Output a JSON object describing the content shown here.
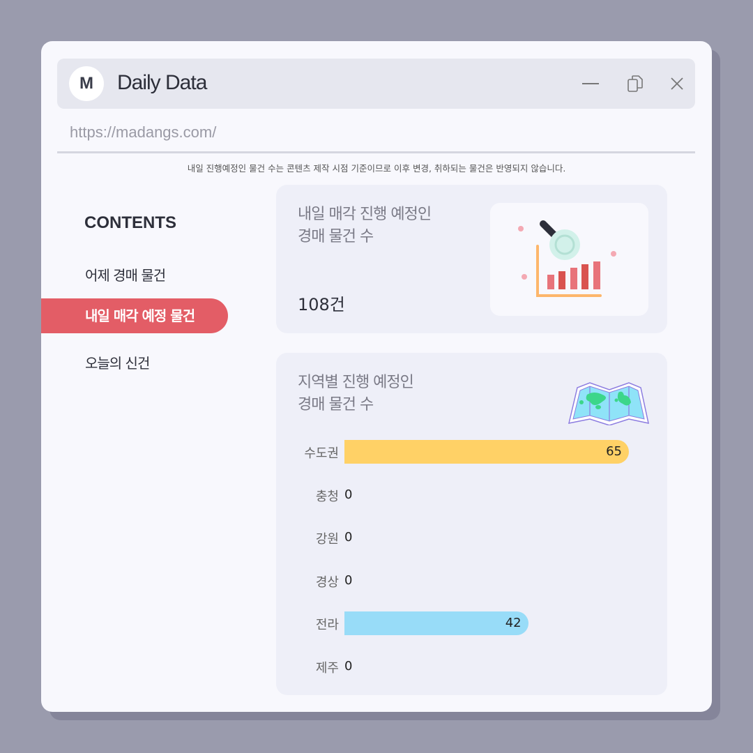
{
  "window": {
    "logo_letter": "M",
    "title": "Daily Data",
    "url": "https://madangs.com/"
  },
  "notice": "내일 진행예정인 물건 수는 콘텐츠 제작 시점 기준이므로 이후 변경, 취하되는 물건은 반영되지 않습니다.",
  "sidebar": {
    "heading": "CONTENTS",
    "items": [
      {
        "label": "어제 경매 물건",
        "active": false
      },
      {
        "label": "내일 매각 예정 물건",
        "active": true
      },
      {
        "label": "오늘의 신건",
        "active": false
      }
    ]
  },
  "card1": {
    "title_line1": "내일 매각 진행 예정인",
    "title_line2": "경매 물건 수",
    "count": "108건"
  },
  "card2": {
    "title_line1": "지역별 진행 예정인",
    "title_line2": "경매 물건 수"
  },
  "chart_data": {
    "type": "bar",
    "orientation": "horizontal",
    "categories": [
      "수도권",
      "충청",
      "강원",
      "경상",
      "전라",
      "제주"
    ],
    "values": [
      65,
      0,
      0,
      0,
      42,
      0
    ],
    "colors": [
      "#ffd166",
      "#ffd166",
      "#ffd166",
      "#ffd166",
      "#98dcf8",
      "#98dcf8"
    ]
  },
  "colors": {
    "accent": "#e35d66",
    "background": "#9a9bad"
  }
}
